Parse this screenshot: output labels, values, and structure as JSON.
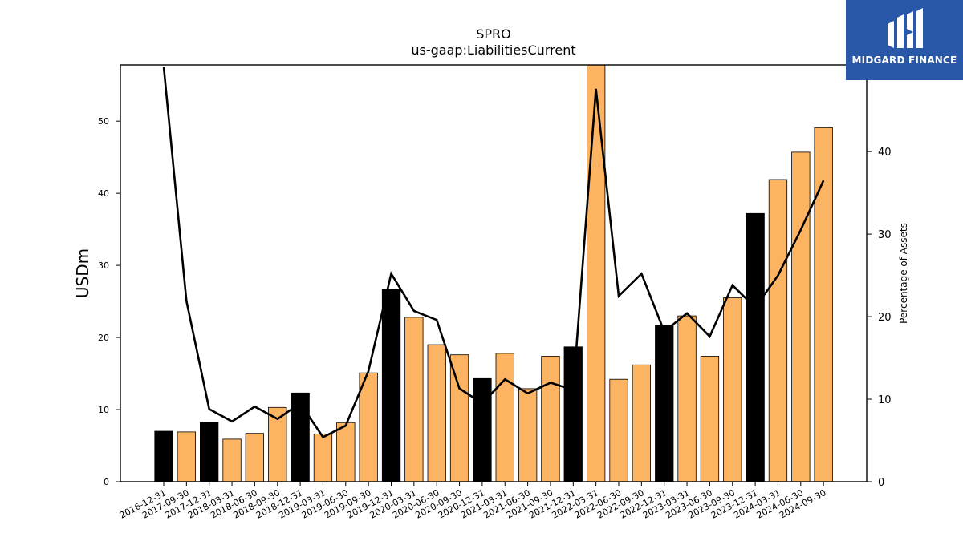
{
  "brand": {
    "name": "MIDGARD FINANCE",
    "bg_color": "#2a58a8"
  },
  "chart_data": {
    "type": "bar",
    "title": "SPRO",
    "subtitle": "us-gaap:LiabilitiesCurrent",
    "ylabel": "USDm",
    "y2label": "Percentage of Assets",
    "ylim": [
      0,
      57.8
    ],
    "y2lim": [
      0,
      50.5
    ],
    "yticks": [
      0,
      10,
      20,
      30,
      40,
      50
    ],
    "y2ticks": [
      0,
      10,
      20,
      30,
      40,
      50
    ],
    "categories": [
      "2016-12-31",
      "2017-09-30",
      "2017-12-31",
      "2018-03-31",
      "2018-06-30",
      "2018-09-30",
      "2018-12-31",
      "2019-03-31",
      "2019-06-30",
      "2019-09-30",
      "2019-12-31",
      "2020-03-31",
      "2020-06-30",
      "2020-09-30",
      "2020-12-31",
      "2021-03-31",
      "2021-06-30",
      "2021-09-30",
      "2021-12-31",
      "2022-03-31",
      "2022-06-30",
      "2022-09-30",
      "2022-12-31",
      "2023-03-31",
      "2023-06-30",
      "2023-09-30",
      "2023-12-31",
      "2024-03-31",
      "2024-06-30",
      "2024-09-30"
    ],
    "series": [
      {
        "values": [
          7.0,
          6.9,
          8.2,
          5.9,
          6.7,
          10.3,
          12.3,
          6.6,
          8.2,
          15.1,
          26.7,
          22.8,
          19.0,
          17.6,
          14.3,
          17.8,
          12.9,
          17.4,
          18.7,
          57.8,
          14.2,
          16.2,
          21.7,
          23.0,
          17.4,
          25.5,
          37.2,
          41.9,
          45.7,
          49.1
        ],
        "colors": [
          "#000000",
          "#fdb462",
          "#000000",
          "#fdb462",
          "#fdb462",
          "#fdb462",
          "#000000",
          "#fdb462",
          "#fdb462",
          "#fdb462",
          "#000000",
          "#fdb462",
          "#fdb462",
          "#fdb462",
          "#000000",
          "#fdb462",
          "#fdb462",
          "#fdb462",
          "#000000",
          "#fdb462",
          "#fdb462",
          "#fdb462",
          "#000000",
          "#fdb462",
          "#fdb462",
          "#fdb462",
          "#000000",
          "#fdb462",
          "#fdb462",
          "#fdb462"
        ]
      },
      {
        "type": "line",
        "axis": "right",
        "color": "#000000",
        "values": [
          50.3,
          21.9,
          8.8,
          7.3,
          9.1,
          7.6,
          9.5,
          5.4,
          6.8,
          13.4,
          25.2,
          20.7,
          19.6,
          11.3,
          9.5,
          12.4,
          10.7,
          12.0,
          11.1,
          47.6,
          22.5,
          25.2,
          18.2,
          20.4,
          17.6,
          23.8,
          21.1,
          25.0,
          30.5,
          36.5
        ]
      }
    ]
  }
}
